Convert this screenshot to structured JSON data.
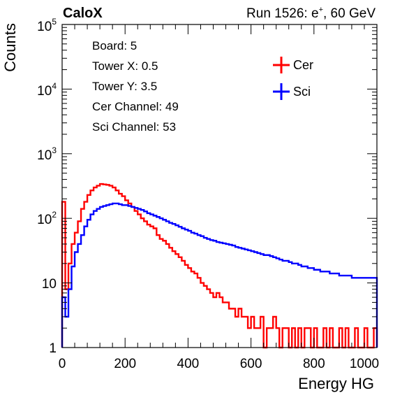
{
  "chart_data": {
    "type": "line",
    "title_left": "CaloX",
    "title_right": "Run 1526: e",
    "title_right_sup": "+",
    "title_right_tail": ", 60 GeV",
    "xlabel": "Energy HG",
    "ylabel": "Counts",
    "xlim": [
      0,
      1000
    ],
    "ylim": [
      1,
      100000
    ],
    "y_scale": "log",
    "grid": false,
    "x_ticks": [
      "0",
      "200",
      "400",
      "600",
      "800",
      "1000"
    ],
    "y_ticks": [
      {
        "base": "1",
        "exp": ""
      },
      {
        "base": "10",
        "exp": ""
      },
      {
        "base": "10",
        "exp": "2"
      },
      {
        "base": "10",
        "exp": "3"
      },
      {
        "base": "10",
        "exp": "4"
      },
      {
        "base": "10",
        "exp": "5"
      }
    ],
    "info_lines": [
      "Board: 5",
      "Tower X: 0.5",
      "Tower Y: 3.5",
      "Cer Channel: 49",
      "Sci Channel: 53"
    ],
    "legend_position": "top-right",
    "series": [
      {
        "name": "Cer",
        "color": "#ff0000",
        "x": [
          0,
          10,
          20,
          30,
          40,
          50,
          60,
          70,
          80,
          90,
          100,
          110,
          120,
          130,
          140,
          150,
          160,
          170,
          180,
          190,
          200,
          210,
          220,
          230,
          240,
          250,
          260,
          270,
          280,
          290,
          300,
          310,
          320,
          330,
          340,
          350,
          360,
          370,
          380,
          390,
          400,
          410,
          420,
          430,
          440,
          450,
          460,
          470,
          480,
          490,
          500,
          510,
          520,
          530,
          540,
          550,
          560,
          570,
          580,
          590,
          600,
          610,
          620,
          630,
          640,
          650,
          660,
          670,
          680,
          690,
          700,
          710,
          720,
          730,
          740,
          750,
          760,
          770,
          780,
          790,
          800,
          810,
          820,
          830,
          840,
          850,
          860,
          870,
          880,
          890,
          900,
          910,
          920,
          930,
          940,
          950,
          960,
          970,
          980,
          990
        ],
        "y": [
          180,
          8,
          20,
          40,
          60,
          90,
          140,
          180,
          230,
          270,
          300,
          320,
          340,
          335,
          330,
          320,
          300,
          270,
          240,
          220,
          190,
          170,
          150,
          130,
          115,
          100,
          90,
          80,
          75,
          70,
          55,
          48,
          45,
          40,
          35,
          31,
          28,
          25,
          22,
          19,
          17,
          15,
          14,
          12,
          10,
          9,
          8,
          7,
          6,
          7,
          6,
          5,
          5,
          4,
          4,
          3,
          4,
          3,
          3,
          2,
          3,
          2,
          2,
          3,
          1,
          2,
          2,
          3,
          2,
          1,
          2,
          2,
          1,
          2,
          1,
          2,
          1,
          2,
          2,
          1,
          2,
          1,
          1,
          2,
          1,
          2,
          1,
          1,
          2,
          1,
          2,
          1,
          1,
          2,
          1,
          1,
          2,
          1,
          1,
          2
        ]
      },
      {
        "name": "Sci",
        "color": "#0000ff",
        "x": [
          0,
          10,
          20,
          30,
          40,
          50,
          60,
          70,
          80,
          90,
          100,
          110,
          120,
          130,
          140,
          150,
          160,
          170,
          180,
          190,
          200,
          210,
          220,
          230,
          240,
          250,
          260,
          270,
          280,
          290,
          300,
          310,
          320,
          330,
          340,
          350,
          360,
          370,
          380,
          390,
          400,
          410,
          420,
          430,
          440,
          450,
          460,
          470,
          480,
          490,
          500,
          510,
          520,
          530,
          540,
          550,
          560,
          570,
          580,
          590,
          600,
          610,
          620,
          630,
          640,
          650,
          660,
          670,
          680,
          690,
          700,
          710,
          720,
          730,
          740,
          750,
          760,
          770,
          780,
          790,
          800,
          810,
          820,
          830,
          840,
          850,
          860,
          870,
          880,
          890,
          900,
          910,
          920,
          930,
          940,
          950,
          960,
          970,
          980,
          990
        ],
        "y": [
          6,
          3,
          8,
          18,
          30,
          40,
          55,
          75,
          95,
          115,
          130,
          140,
          150,
          155,
          160,
          165,
          170,
          170,
          165,
          160,
          160,
          155,
          150,
          145,
          140,
          135,
          128,
          120,
          115,
          110,
          105,
          100,
          95,
          90,
          85,
          82,
          78,
          74,
          70,
          67,
          64,
          60,
          58,
          55,
          53,
          50,
          48,
          46,
          45,
          43,
          42,
          41,
          40,
          39,
          38,
          36,
          35,
          34,
          33,
          32,
          31,
          30,
          29,
          28,
          27,
          27,
          26,
          25,
          24,
          23,
          22,
          22,
          21,
          20,
          20,
          19,
          18,
          18,
          17,
          17,
          16,
          16,
          15,
          15,
          15,
          14,
          14,
          14,
          13,
          13,
          13,
          13,
          12,
          12,
          12,
          12,
          12,
          12,
          12,
          12
        ]
      }
    ]
  }
}
